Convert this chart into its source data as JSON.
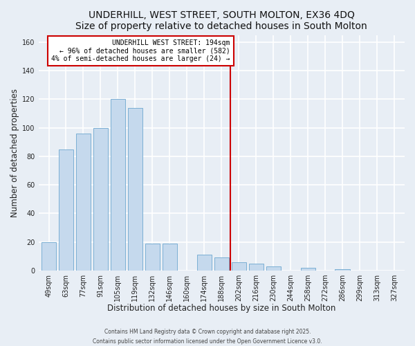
{
  "title": "UNDERHILL, WEST STREET, SOUTH MOLTON, EX36 4DQ",
  "subtitle": "Size of property relative to detached houses in South Molton",
  "xlabel": "Distribution of detached houses by size in South Molton",
  "ylabel": "Number of detached properties",
  "categories": [
    "49sqm",
    "63sqm",
    "77sqm",
    "91sqm",
    "105sqm",
    "119sqm",
    "132sqm",
    "146sqm",
    "160sqm",
    "174sqm",
    "188sqm",
    "202sqm",
    "216sqm",
    "230sqm",
    "244sqm",
    "258sqm",
    "272sqm",
    "286sqm",
    "299sqm",
    "313sqm",
    "327sqm"
  ],
  "values": [
    20,
    85,
    96,
    100,
    120,
    114,
    19,
    19,
    0,
    11,
    9,
    6,
    5,
    3,
    0,
    2,
    0,
    1,
    0,
    0,
    0
  ],
  "bar_color": "#c5d9ed",
  "bar_edge_color": "#7bafd4",
  "vline_color": "#cc0000",
  "annotation_title": "UNDERHILL WEST STREET: 194sqm",
  "annotation_line1": "← 96% of detached houses are smaller (582)",
  "annotation_line2": "4% of semi-detached houses are larger (24) →",
  "ylim": [
    0,
    165
  ],
  "yticks": [
    0,
    20,
    40,
    60,
    80,
    100,
    120,
    140,
    160
  ],
  "footnote1": "Contains HM Land Registry data © Crown copyright and database right 2025.",
  "footnote2": "Contains public sector information licensed under the Open Government Licence v3.0.",
  "bg_color": "#e8eef5",
  "plot_bg_color": "#e8eef5",
  "grid_color": "#ffffff",
  "title_fontsize": 10,
  "axis_label_fontsize": 8.5,
  "tick_fontsize": 7,
  "footnote_fontsize": 5.5
}
